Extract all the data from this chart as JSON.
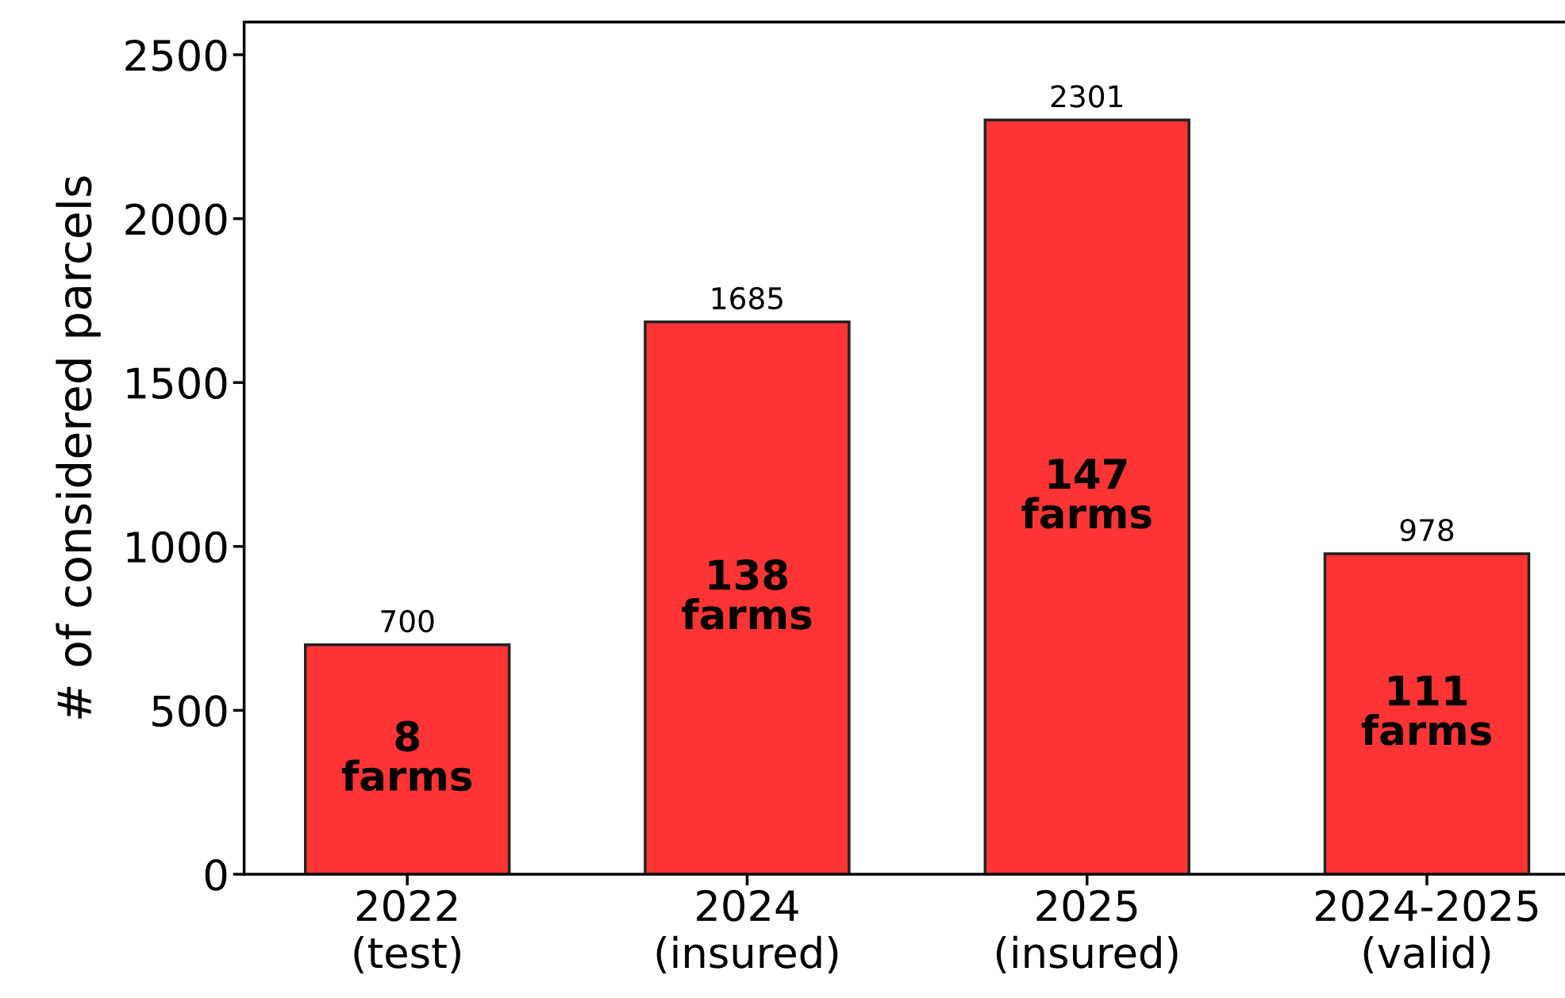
{
  "chart_data": {
    "type": "bar",
    "ylabel": "# of considered parcels",
    "categories": [
      "2022\n(test)",
      "2024\n(insured)",
      "2025\n(insured)",
      "2024-2025\n(valid)"
    ],
    "values": [
      700,
      1685,
      2301,
      978
    ],
    "color": "#ff3535",
    "ylim": [
      0,
      2600
    ],
    "yticks": [
      0,
      500,
      1000,
      1500,
      2000,
      2500
    ],
    "grid": false,
    "data_labels": true,
    "annotations": [
      "8\nfarms",
      "138\nfarms",
      "147\nfarms",
      "111\nfarms"
    ]
  }
}
